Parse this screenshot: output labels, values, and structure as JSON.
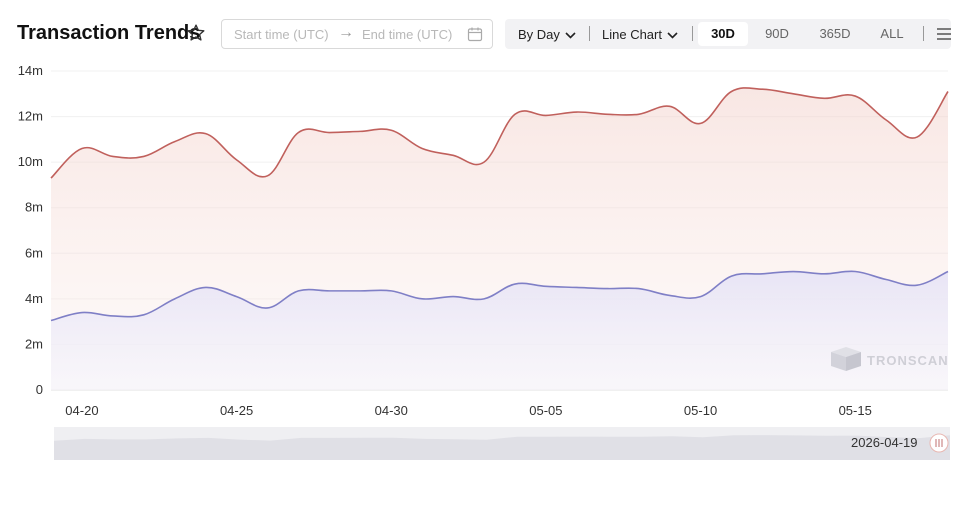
{
  "header": {
    "title": "Transaction Trends",
    "star_icon": "star-outline-icon"
  },
  "date_range": {
    "start_placeholder": "Start time (UTC)",
    "arrow": "→",
    "end_placeholder": "End time (UTC)",
    "calendar_icon": "calendar-icon"
  },
  "toolbar": {
    "granularity": "By Day",
    "chart_type": "Line Chart",
    "ranges": [
      "30D",
      "90D",
      "365D",
      "ALL"
    ],
    "active_range": "30D",
    "menu_icon": "hamburger-menu-icon"
  },
  "watermark": {
    "text": "TRONSCAN",
    "icon": "tronscan-logo-icon"
  },
  "navigator": {
    "label": "2026-04-19"
  },
  "chart_data": {
    "type": "area",
    "x": [
      "04-19",
      "04-20",
      "04-21",
      "04-22",
      "04-23",
      "04-24",
      "04-25",
      "04-26",
      "04-27",
      "04-28",
      "04-29",
      "04-30",
      "05-01",
      "05-02",
      "05-03",
      "05-04",
      "05-05",
      "05-06",
      "05-07",
      "05-08",
      "05-09",
      "05-10",
      "05-11",
      "05-12",
      "05-13",
      "05-14",
      "05-15",
      "05-16",
      "05-17",
      "05-18"
    ],
    "x_tick_labels": [
      "04-20",
      "04-25",
      "04-30",
      "05-05",
      "05-10",
      "05-15"
    ],
    "y_tick_labels": [
      "0",
      "2m",
      "4m",
      "6m",
      "8m",
      "10m",
      "12m",
      "14m"
    ],
    "ylim": [
      0,
      14000000
    ],
    "grid": true,
    "legend": "none",
    "series": [
      {
        "color": "#c0605c",
        "values": [
          9300000,
          10600000,
          10250000,
          10250000,
          10900000,
          11250000,
          10100000,
          9400000,
          11300000,
          11300000,
          11350000,
          11400000,
          10600000,
          10300000,
          10000000,
          12100000,
          12050000,
          12200000,
          12100000,
          12100000,
          12450000,
          11700000,
          13100000,
          13200000,
          13000000,
          12800000,
          12900000,
          11850000,
          11100000,
          13100000
        ]
      },
      {
        "color": "#7f7fc6",
        "values": [
          3050000,
          3400000,
          3250000,
          3300000,
          4000000,
          4500000,
          4100000,
          3600000,
          4350000,
          4350000,
          4350000,
          4350000,
          4000000,
          4100000,
          4000000,
          4650000,
          4550000,
          4500000,
          4450000,
          4450000,
          4150000,
          4100000,
          5000000,
          5100000,
          5200000,
          5100000,
          5200000,
          4850000,
          4600000,
          5200000
        ]
      }
    ]
  }
}
